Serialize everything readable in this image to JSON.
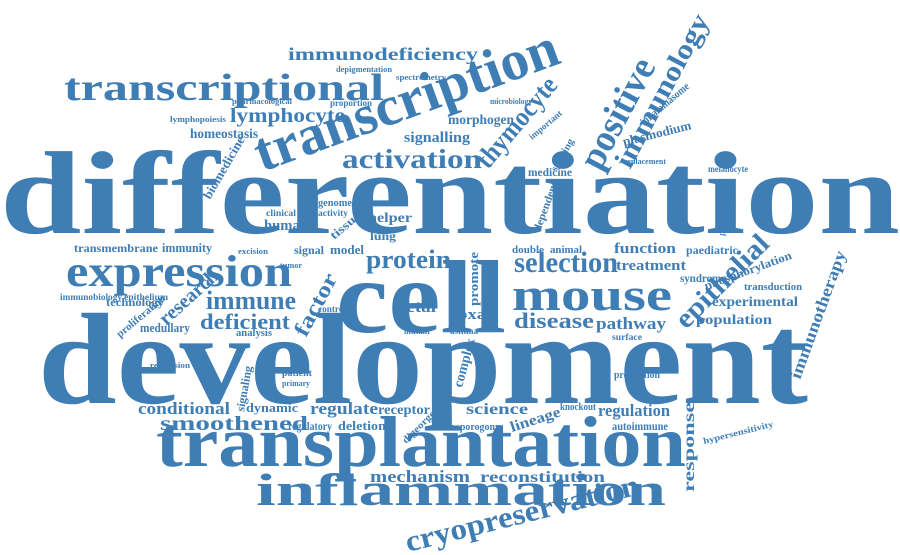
{
  "word_cloud": {
    "color": "#3f7db5",
    "words": [
      "differentiation",
      "development",
      "cell",
      "transplantation",
      "transcription",
      "transcriptional",
      "inflammation",
      "expression",
      "mouse",
      "positive",
      "immunology",
      "cryopreservation",
      "selection",
      "activation",
      "thymocyte",
      "epithelial",
      "immunodeficiency",
      "lymphocyte",
      "immune",
      "protein",
      "disease",
      "deficient",
      "factor",
      "research",
      "smoothened",
      "conditional",
      "regulate",
      "mechanism",
      "reconstitution",
      "science",
      "lineage",
      "regulation",
      "response",
      "immunotherapy",
      "experimental",
      "population",
      "function",
      "treatment",
      "pathway",
      "signalling",
      "morphogen",
      "homeostasis",
      "human",
      "biomedicine",
      "plasmodium",
      "medicine",
      "fetal",
      "foxa",
      "promote",
      "helper",
      "tissue",
      "model",
      "signal",
      "medullary",
      "technology",
      "proliferation",
      "analysis",
      "receptor",
      "deletion",
      "regulatory",
      "dynamic",
      "autoimmune",
      "phosphorylation",
      "transduction",
      "paediatric",
      "syndrome",
      "inflammasome",
      "double",
      "animal",
      "transmembrane",
      "immunity",
      "immunobiology",
      "epithelium",
      "lymphopoiesis",
      "pharmacological",
      "proportion",
      "depigmentation",
      "spectrometry",
      "microbiology",
      "important",
      "splicing",
      "dependent",
      "complex",
      "signaling",
      "sporogony",
      "digeorge",
      "knockout",
      "production",
      "surface",
      "melanocyte",
      "pigmentation",
      "replacement",
      "control",
      "patient",
      "primary",
      "genome",
      "activity",
      "clinical",
      "lung",
      "hypersensitivity",
      "repression",
      "excision",
      "asthma",
      "mutant",
      "tumor"
    ]
  }
}
